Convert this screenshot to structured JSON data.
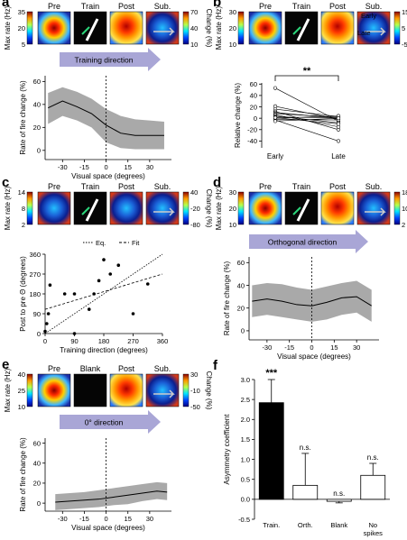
{
  "panels": {
    "a": {
      "letter": "a",
      "headers": [
        "Pre",
        "Train",
        "Post",
        "Sub."
      ],
      "left_scale": {
        "label": "Max rate (Hz)",
        "ticks": [
          "35",
          "20",
          "5"
        ]
      },
      "right_scale": {
        "label": "Change (%)",
        "ticks": [
          "70",
          "40",
          "10"
        ]
      },
      "arrow_label": "Training direction",
      "colors": {
        "arrow_fill": "#a9a6d6",
        "band": "#9a9a9a"
      }
    },
    "b": {
      "letter": "b",
      "headers": [
        "Pre",
        "Train",
        "Post",
        "Sub."
      ],
      "left_scale": {
        "label": "Max rate (Hz)",
        "ticks": [
          "30",
          "20",
          "10"
        ]
      },
      "right_scale": {
        "label": "Change (%)",
        "ticks": [
          "15",
          "5",
          "-5"
        ]
      },
      "inset_labels": [
        "Early",
        "Late"
      ],
      "significance": "**"
    },
    "c": {
      "letter": "c",
      "headers": [
        "Pre",
        "Train",
        "Post",
        "Sub."
      ],
      "left_scale": {
        "label": "Max rate (Hz)",
        "ticks": [
          "14",
          "8",
          "2"
        ]
      },
      "right_scale": {
        "label": "Change (%)",
        "ticks": [
          "40",
          "-20",
          "-80"
        ]
      },
      "legend": [
        "Eq.",
        "Fit"
      ]
    },
    "d": {
      "letter": "d",
      "headers": [
        "Pre",
        "Train",
        "Post",
        "Sub."
      ],
      "left_scale": {
        "label": "Max rate (Hz)",
        "ticks": [
          "30",
          "20",
          "10"
        ]
      },
      "right_scale": {
        "label": "Change (%)",
        "ticks": [
          "18",
          "10",
          "2"
        ]
      },
      "arrow_label": "Orthogonal direction"
    },
    "e": {
      "letter": "e",
      "headers": [
        "Pre",
        "Blank",
        "Post",
        "Sub."
      ],
      "left_scale": {
        "label": "Max rate (Hz)",
        "ticks": [
          "40",
          "25",
          "10"
        ]
      },
      "right_scale": {
        "label": "Change (%)",
        "ticks": [
          "30",
          "-10",
          "-50"
        ]
      },
      "arrow_label": "0° direction"
    },
    "f": {
      "letter": "f"
    }
  },
  "chart_data": [
    {
      "id": "a",
      "type": "line",
      "xlabel": "Visual space (degrees)",
      "ylabel": "Rate of fire change (%)",
      "xlim": [
        -42,
        45
      ],
      "ylim": [
        -8,
        65
      ],
      "xticks": [
        -30,
        -15,
        0,
        15,
        30
      ],
      "yticks": [
        0,
        20,
        40,
        60
      ],
      "x": [
        -40,
        -30,
        -20,
        -10,
        0,
        10,
        20,
        30,
        40
      ],
      "y": [
        37,
        43,
        38,
        32,
        22,
        15,
        13,
        13,
        13
      ],
      "y_low": [
        23,
        30,
        26,
        20,
        7,
        2,
        1,
        1,
        1
      ],
      "y_high": [
        50,
        55,
        51,
        45,
        36,
        30,
        27,
        26,
        25
      ]
    },
    {
      "id": "b",
      "type": "line",
      "ylabel": "Relative change (%)",
      "ylim": [
        -52,
        62
      ],
      "yticks": [
        -40,
        -20,
        0,
        20,
        40,
        60
      ],
      "categories": [
        "Early",
        "Late"
      ],
      "pairs": [
        [
          53,
          -5
        ],
        [
          21,
          -2
        ],
        [
          16,
          3
        ],
        [
          12,
          -20
        ],
        [
          10,
          0
        ],
        [
          8,
          2
        ],
        [
          6,
          -15
        ],
        [
          4,
          -8
        ],
        [
          2,
          1
        ],
        [
          0,
          4
        ],
        [
          -2,
          -3
        ],
        [
          -3,
          -40
        ],
        [
          -5,
          0
        ],
        [
          1,
          -10
        ]
      ]
    },
    {
      "id": "c",
      "type": "scatter",
      "xlabel": "Training direction (degrees)",
      "ylabel": "Post to pre Θ (degrees)",
      "xlim": [
        0,
        360
      ],
      "ylim": [
        0,
        360
      ],
      "xticks": [
        0,
        90,
        180,
        270,
        360
      ],
      "yticks": [
        0,
        90,
        180,
        270,
        360
      ],
      "points": [
        [
          0,
          10
        ],
        [
          5,
          45
        ],
        [
          10,
          90
        ],
        [
          15,
          220
        ],
        [
          60,
          180
        ],
        [
          90,
          0
        ],
        [
          90,
          180
        ],
        [
          135,
          110
        ],
        [
          150,
          180
        ],
        [
          165,
          240
        ],
        [
          180,
          335
        ],
        [
          200,
          270
        ],
        [
          225,
          310
        ],
        [
          270,
          90
        ],
        [
          315,
          225
        ]
      ],
      "eq_line": [
        [
          0,
          0
        ],
        [
          360,
          360
        ]
      ],
      "fit_line": [
        [
          0,
          110
        ],
        [
          360,
          270
        ]
      ]
    },
    {
      "id": "d",
      "type": "line",
      "xlabel": "Visual space (degrees)",
      "ylabel": "Rate of fire change (%)",
      "xlim": [
        -42,
        45
      ],
      "ylim": [
        -8,
        65
      ],
      "xticks": [
        -30,
        -15,
        0,
        15,
        30
      ],
      "yticks": [
        0,
        20,
        40,
        60
      ],
      "x": [
        -40,
        -30,
        -20,
        -10,
        0,
        10,
        20,
        30,
        40
      ],
      "y": [
        26,
        28,
        26,
        23,
        22,
        25,
        29,
        30,
        22
      ],
      "y_low": [
        12,
        14,
        12,
        10,
        8,
        10,
        14,
        16,
        8
      ],
      "y_high": [
        40,
        42,
        41,
        38,
        36,
        39,
        42,
        44,
        36
      ]
    },
    {
      "id": "e",
      "type": "line",
      "xlabel": "Visual space (degrees)",
      "ylabel": "Rate of fire change (%)",
      "xlim": [
        -42,
        45
      ],
      "ylim": [
        -8,
        65
      ],
      "xticks": [
        -30,
        -15,
        0,
        15,
        30
      ],
      "yticks": [
        0,
        20,
        40,
        60
      ],
      "x": [
        -35,
        -25,
        -15,
        -5,
        5,
        15,
        25,
        35,
        42
      ],
      "y": [
        1,
        2,
        3,
        4,
        6,
        8,
        10,
        12,
        11
      ],
      "y_low": [
        -7,
        -6,
        -5,
        -4,
        -2,
        -1,
        2,
        4,
        3
      ],
      "y_high": [
        9,
        10,
        11,
        13,
        15,
        17,
        19,
        21,
        20
      ]
    },
    {
      "id": "f",
      "type": "bar",
      "ylabel": "Asymmetry coefficient",
      "ylim": [
        -0.5,
        3.0
      ],
      "yticks": [
        -0.5,
        0.0,
        0.5,
        1.0,
        1.5,
        2.0,
        2.5,
        3.0
      ],
      "categories": [
        "Train.",
        "Orth.",
        "Blank",
        "No spikes"
      ],
      "values": [
        2.42,
        0.35,
        -0.05,
        0.6
      ],
      "errors": [
        0.58,
        0.8,
        0.04,
        0.3
      ],
      "annotations": [
        "***",
        "n.s.",
        "n.s.",
        "n.s."
      ],
      "colors": [
        "#000000",
        "#ffffff",
        "#ffffff",
        "#ffffff"
      ]
    }
  ]
}
